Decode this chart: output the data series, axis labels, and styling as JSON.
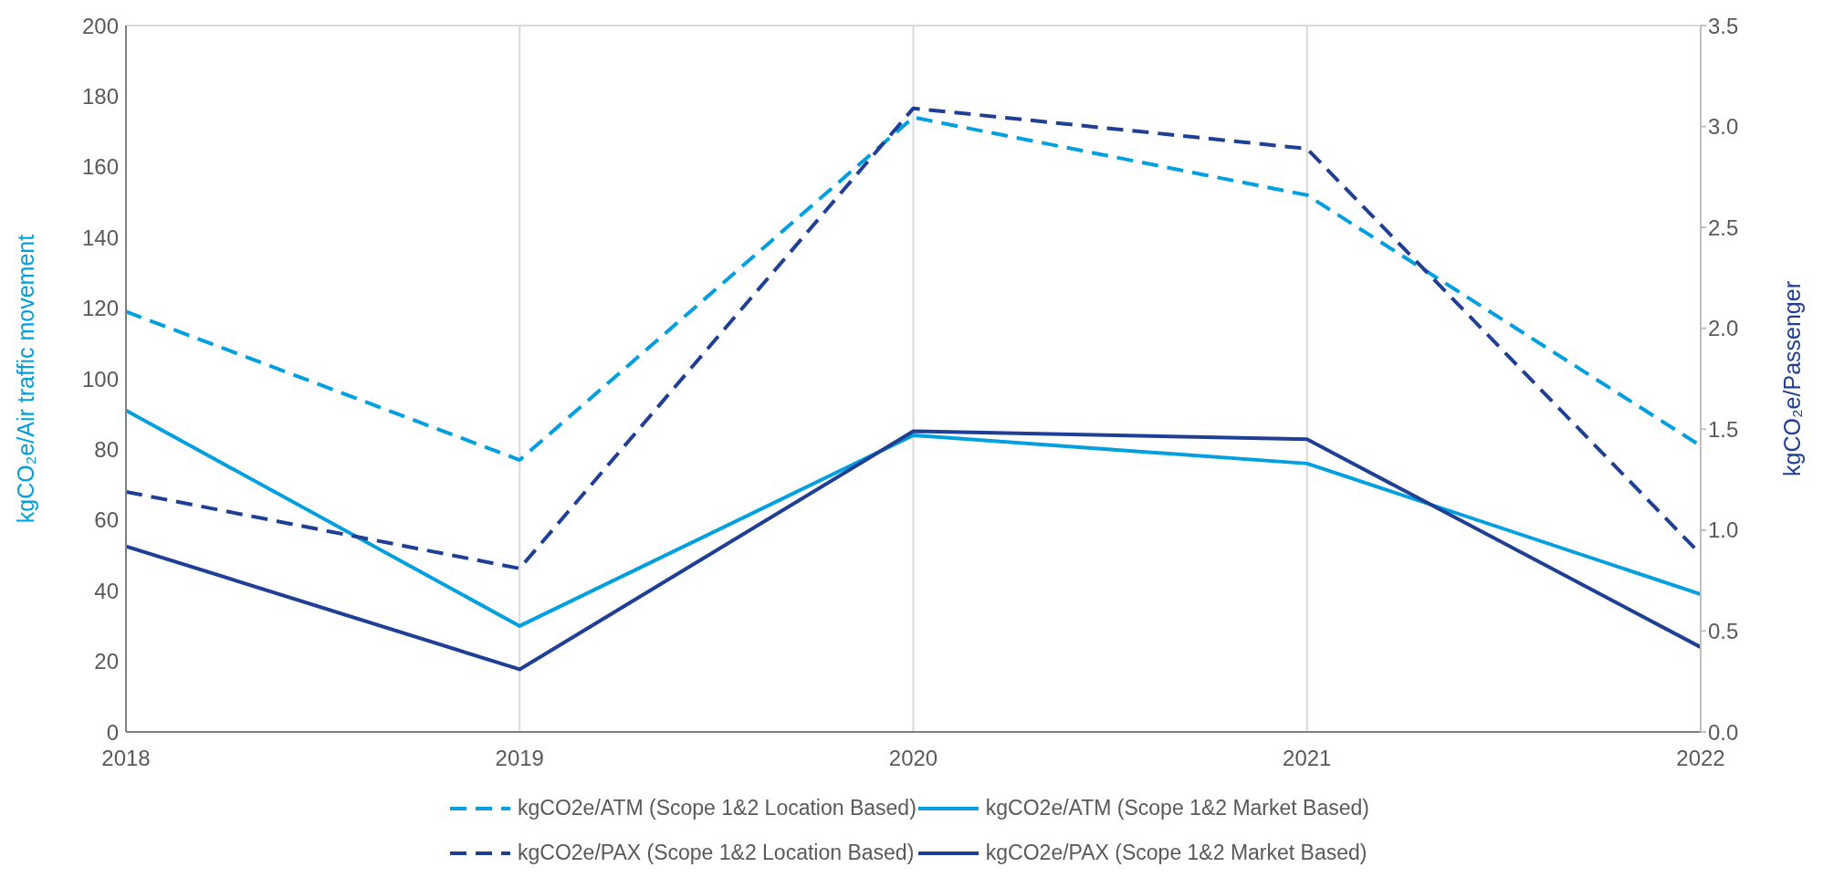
{
  "chart_data": {
    "type": "line",
    "ylabel": "kgCO₂e/Air traffic movement",
    "y2label": "kgCO₂e/Passenger",
    "x": [
      2018,
      2019,
      2020,
      2021,
      2022
    ],
    "xlim": [
      2018,
      2022
    ],
    "xticks": [
      2018,
      2019,
      2020,
      2021,
      2022
    ],
    "ylim": [
      0,
      200
    ],
    "yticks": [
      0,
      20,
      40,
      60,
      80,
      100,
      120,
      140,
      160,
      180,
      200
    ],
    "y2lim": [
      0,
      3.5
    ],
    "y2ticks": [
      {
        "value": 0,
        "label": "0.0"
      },
      0.5,
      {
        "value": 1,
        "label": "1.0"
      },
      1.5,
      {
        "value": 2,
        "label": "2.0"
      },
      2.5,
      {
        "value": 3,
        "label": "3.0"
      },
      3.5
    ],
    "grid": true,
    "legend": "bottom",
    "marker": "none",
    "series": [
      {
        "name": "kgCO2e/ATM (Scope 1&2 Location Based)",
        "color": "#009fdf",
        "line_style": "dashed",
        "values": [
          119,
          77,
          174,
          152,
          81
        ]
      },
      {
        "name": "kgCO2e/ATM (Scope 1&2 Market Based)",
        "color": "#009fdf",
        "line_style": "solid",
        "values": [
          91,
          30,
          84,
          76,
          39
        ]
      },
      {
        "name": "kgCO2e/PAX (Scope 1&2 Location Based)",
        "color": "#1f3f94",
        "line_style": "dashed",
        "axis": "y2",
        "values": [
          1.19,
          0.81,
          3.09,
          2.89,
          0.88
        ]
      },
      {
        "name": "kgCO2e/PAX (Scope 1&2 Market Based)",
        "color": "#1f3f94",
        "line_style": "solid",
        "axis": "y2",
        "values": [
          0.92,
          0.31,
          1.49,
          1.45,
          0.42
        ]
      }
    ]
  }
}
